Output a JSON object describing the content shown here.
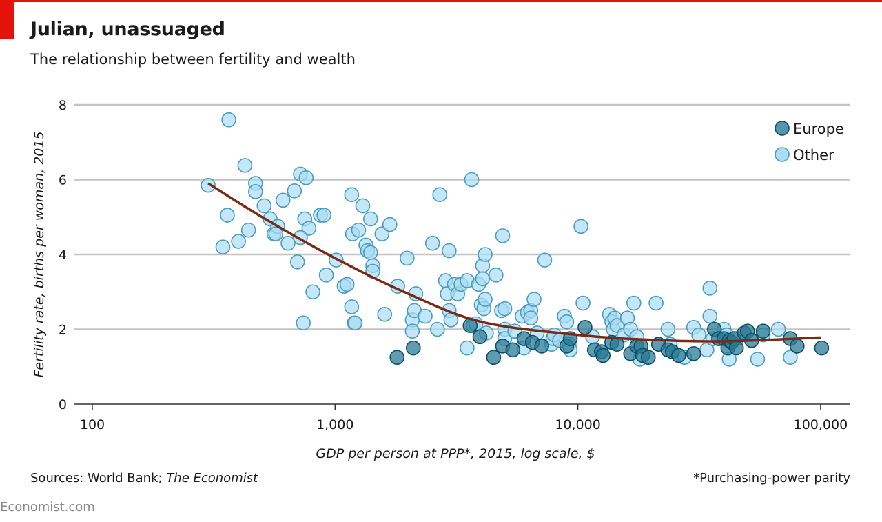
{
  "header": {
    "title": "Julian, unassuaged",
    "subtitle": "The relationship between fertility and wealth"
  },
  "footer": {
    "source_prefix": "Sources: World Bank; ",
    "source_italic": "The Economist",
    "footnote": "*Purchasing-power parity",
    "brand": "Economist.com"
  },
  "colors": {
    "accent": "#e3120b",
    "europe_fill": "#2b7a96",
    "europe_stroke": "#0b4f66",
    "other_fill": "#a9ddf4",
    "other_stroke": "#4a9bbd",
    "trend": "#7a2a14",
    "grid": "#c4c4c4"
  },
  "chart_data": {
    "type": "scatter",
    "xlabel": "GDP per person at PPP*, 2015, log scale, $",
    "ylabel": "Fertility rate, births per woman, 2015",
    "x_scale": "log",
    "xlim": [
      100,
      130000
    ],
    "ylim": [
      0,
      8
    ],
    "x_ticks": [
      100,
      1000,
      10000,
      100000
    ],
    "x_tick_labels": [
      "100",
      "1,000",
      "10,000",
      "100,000"
    ],
    "y_ticks": [
      0,
      2,
      4,
      6,
      8
    ],
    "y_tick_labels": [
      "0",
      "2",
      "4",
      "6",
      "8"
    ],
    "grid": "horizontal",
    "legend_position": "top-right",
    "series": [
      {
        "name": "Europe",
        "points": [
          [
            1800,
            1.25
          ],
          [
            2100,
            1.5
          ],
          [
            3600,
            2.1
          ],
          [
            3950,
            1.8
          ],
          [
            4500,
            1.25
          ],
          [
            4900,
            1.55
          ],
          [
            5400,
            1.45
          ],
          [
            6000,
            1.75
          ],
          [
            6500,
            1.65
          ],
          [
            7100,
            1.55
          ],
          [
            9000,
            1.55
          ],
          [
            9300,
            1.75
          ],
          [
            10700,
            2.05
          ],
          [
            11700,
            1.45
          ],
          [
            12500,
            1.4
          ],
          [
            12700,
            1.3
          ],
          [
            13800,
            1.65
          ],
          [
            14500,
            1.6
          ],
          [
            16500,
            1.35
          ],
          [
            17500,
            1.55
          ],
          [
            18200,
            1.55
          ],
          [
            18500,
            1.3
          ],
          [
            19500,
            1.25
          ],
          [
            21500,
            1.6
          ],
          [
            23500,
            1.45
          ],
          [
            24500,
            1.4
          ],
          [
            26000,
            1.3
          ],
          [
            30000,
            1.35
          ],
          [
            36500,
            2.0
          ],
          [
            38000,
            1.75
          ],
          [
            40000,
            1.75
          ],
          [
            41500,
            1.5
          ],
          [
            42000,
            1.7
          ],
          [
            43000,
            1.65
          ],
          [
            44000,
            1.75
          ],
          [
            45000,
            1.5
          ],
          [
            48500,
            1.9
          ],
          [
            50000,
            1.95
          ],
          [
            52000,
            1.7
          ],
          [
            58000,
            1.95
          ],
          [
            75000,
            1.75
          ],
          [
            80000,
            1.55
          ],
          [
            101000,
            1.5
          ]
        ]
      },
      {
        "name": "Other",
        "points": [
          [
            365,
            7.6
          ],
          [
            300,
            5.85
          ],
          [
            360,
            5.05
          ],
          [
            345,
            4.2
          ],
          [
            400,
            4.35
          ],
          [
            425,
            6.38
          ],
          [
            440,
            4.65
          ],
          [
            470,
            5.9
          ],
          [
            470,
            5.68
          ],
          [
            510,
            5.3
          ],
          [
            540,
            4.95
          ],
          [
            560,
            4.55
          ],
          [
            580,
            4.75
          ],
          [
            570,
            4.55
          ],
          [
            610,
            5.45
          ],
          [
            640,
            4.3
          ],
          [
            680,
            5.7
          ],
          [
            700,
            3.8
          ],
          [
            720,
            6.15
          ],
          [
            760,
            6.05
          ],
          [
            750,
            4.95
          ],
          [
            780,
            4.7
          ],
          [
            720,
            4.45
          ],
          [
            740,
            2.17
          ],
          [
            810,
            3.0
          ],
          [
            870,
            5.05
          ],
          [
            900,
            5.05
          ],
          [
            920,
            3.45
          ],
          [
            1010,
            3.85
          ],
          [
            1090,
            3.15
          ],
          [
            1120,
            3.2
          ],
          [
            1170,
            5.6
          ],
          [
            1180,
            4.55
          ],
          [
            1170,
            2.6
          ],
          [
            1200,
            2.17
          ],
          [
            1210,
            2.17
          ],
          [
            1250,
            4.65
          ],
          [
            1300,
            5.3
          ],
          [
            1340,
            4.25
          ],
          [
            1360,
            4.1
          ],
          [
            1400,
            4.05
          ],
          [
            1400,
            4.95
          ],
          [
            1430,
            3.7
          ],
          [
            1430,
            3.55
          ],
          [
            1560,
            4.55
          ],
          [
            1600,
            2.4
          ],
          [
            1680,
            4.8
          ],
          [
            1810,
            3.15
          ],
          [
            1980,
            3.9
          ],
          [
            2080,
            2.25
          ],
          [
            2080,
            1.95
          ],
          [
            2120,
            2.5
          ],
          [
            2150,
            2.95
          ],
          [
            2350,
            2.35
          ],
          [
            2520,
            4.3
          ],
          [
            2640,
            2.0
          ],
          [
            2700,
            5.6
          ],
          [
            2850,
            3.3
          ],
          [
            2900,
            2.95
          ],
          [
            2950,
            4.1
          ],
          [
            2950,
            2.5
          ],
          [
            3000,
            2.25
          ],
          [
            3100,
            3.2
          ],
          [
            3200,
            2.95
          ],
          [
            3300,
            3.2
          ],
          [
            3500,
            3.3
          ],
          [
            3650,
            6.0
          ],
          [
            3500,
            1.5
          ],
          [
            3700,
            2.1
          ],
          [
            3800,
            2.15
          ],
          [
            3900,
            3.2
          ],
          [
            4000,
            2.65
          ],
          [
            4050,
            3.7
          ],
          [
            4050,
            3.35
          ],
          [
            4100,
            2.55
          ],
          [
            4150,
            2.8
          ],
          [
            4150,
            4.0
          ],
          [
            4200,
            1.9
          ],
          [
            4600,
            3.45
          ],
          [
            4850,
            2.5
          ],
          [
            4900,
            4.5
          ],
          [
            5000,
            2.55
          ],
          [
            5000,
            2.0
          ],
          [
            5000,
            1.75
          ],
          [
            5500,
            1.95
          ],
          [
            5900,
            2.35
          ],
          [
            6000,
            1.5
          ],
          [
            6200,
            2.45
          ],
          [
            6400,
            2.5
          ],
          [
            6400,
            2.3
          ],
          [
            6600,
            2.8
          ],
          [
            6800,
            1.9
          ],
          [
            7300,
            3.85
          ],
          [
            7800,
            1.6
          ],
          [
            7900,
            1.75
          ],
          [
            8000,
            1.85
          ],
          [
            8400,
            1.7
          ],
          [
            8800,
            2.35
          ],
          [
            9000,
            2.2
          ],
          [
            9200,
            1.6
          ],
          [
            9300,
            1.45
          ],
          [
            10300,
            4.75
          ],
          [
            10500,
            2.7
          ],
          [
            11500,
            1.8
          ],
          [
            13500,
            2.4
          ],
          [
            13800,
            2.2
          ],
          [
            14000,
            2.0
          ],
          [
            14200,
            2.3
          ],
          [
            14500,
            2.1
          ],
          [
            15500,
            1.85
          ],
          [
            16000,
            2.3
          ],
          [
            16500,
            2.0
          ],
          [
            17000,
            2.7
          ],
          [
            17500,
            1.8
          ],
          [
            18000,
            1.2
          ],
          [
            21000,
            2.7
          ],
          [
            23500,
            2.0
          ],
          [
            24000,
            1.6
          ],
          [
            27500,
            1.25
          ],
          [
            30000,
            2.05
          ],
          [
            31500,
            1.85
          ],
          [
            34000,
            1.45
          ],
          [
            35000,
            3.1
          ],
          [
            35000,
            2.35
          ],
          [
            36000,
            1.75
          ],
          [
            40000,
            2.0
          ],
          [
            41000,
            1.85
          ],
          [
            42000,
            1.2
          ],
          [
            45000,
            1.75
          ],
          [
            55000,
            1.2
          ],
          [
            58000,
            1.85
          ],
          [
            67000,
            2.0
          ],
          [
            75000,
            1.25
          ]
        ]
      }
    ],
    "trend_line": [
      [
        300,
        5.9
      ],
      [
        500,
        5.0
      ],
      [
        1000,
        3.9
      ],
      [
        2000,
        2.95
      ],
      [
        4000,
        2.2
      ],
      [
        10000,
        1.85
      ],
      [
        20000,
        1.72
      ],
      [
        40000,
        1.68
      ],
      [
        100000,
        1.78
      ]
    ]
  }
}
